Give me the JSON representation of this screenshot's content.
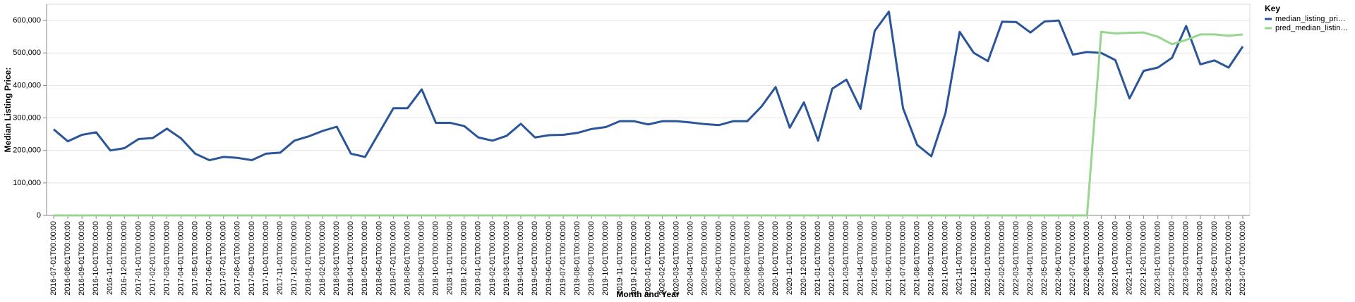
{
  "chart_data": {
    "type": "line",
    "x_label": "Month and Year",
    "y_label": "Median Listing Price:",
    "legend_title": "Key",
    "legend_position": "right",
    "grid": true,
    "ylim": [
      0,
      650000
    ],
    "yticks": [
      0,
      {
        "value": 100000,
        "label": "100,000"
      },
      {
        "value": 200000,
        "label": "200,000"
      },
      {
        "value": 300000,
        "label": "300,000"
      },
      {
        "value": 400000,
        "label": "400,000"
      },
      {
        "value": 500000,
        "label": "500,000"
      },
      {
        "value": 600000,
        "label": "600,000"
      }
    ],
    "categories": [
      "2016-07-01T00:00:00",
      "2016-08-01T00:00:00",
      "2016-09-01T00:00:00",
      "2016-10-01T00:00:00",
      "2016-11-01T00:00:00",
      "2016-12-01T00:00:00",
      "2017-01-01T00:00:00",
      "2017-02-01T00:00:00",
      "2017-03-01T00:00:00",
      "2017-04-01T00:00:00",
      "2017-05-01T00:00:00",
      "2017-06-01T00:00:00",
      "2017-07-01T00:00:00",
      "2017-08-01T00:00:00",
      "2017-09-01T00:00:00",
      "2017-10-01T00:00:00",
      "2017-11-01T00:00:00",
      "2017-12-01T00:00:00",
      "2018-01-01T00:00:00",
      "2018-02-01T00:00:00",
      "2018-03-01T00:00:00",
      "2018-04-01T00:00:00",
      "2018-05-01T00:00:00",
      "2018-06-01T00:00:00",
      "2018-07-01T00:00:00",
      "2018-08-01T00:00:00",
      "2018-09-01T00:00:00",
      "2018-10-01T00:00:00",
      "2018-11-01T00:00:00",
      "2018-12-01T00:00:00",
      "2019-01-01T00:00:00",
      "2019-02-01T00:00:00",
      "2019-03-01T00:00:00",
      "2019-04-01T00:00:00",
      "2019-05-01T00:00:00",
      "2019-06-01T00:00:00",
      "2019-07-01T00:00:00",
      "2019-08-01T00:00:00",
      "2019-09-01T00:00:00",
      "2019-10-01T00:00:00",
      "2019-11-01T00:00:00",
      "2019-12-01T00:00:00",
      "2020-01-01T00:00:00",
      "2020-02-01T00:00:00",
      "2020-03-01T00:00:00",
      "2020-04-01T00:00:00",
      "2020-05-01T00:00:00",
      "2020-06-01T00:00:00",
      "2020-07-01T00:00:00",
      "2020-08-01T00:00:00",
      "2020-09-01T00:00:00",
      "2020-10-01T00:00:00",
      "2020-11-01T00:00:00",
      "2020-12-01T00:00:00",
      "2021-01-01T00:00:00",
      "2021-02-01T00:00:00",
      "2021-03-01T00:00:00",
      "2021-04-01T00:00:00",
      "2021-05-01T00:00:00",
      "2021-06-01T00:00:00",
      "2021-07-01T00:00:00",
      "2021-08-01T00:00:00",
      "2021-09-01T00:00:00",
      "2021-10-01T00:00:00",
      "2021-11-01T00:00:00",
      "2021-12-01T00:00:00",
      "2022-01-01T00:00:00",
      "2022-02-01T00:00:00",
      "2022-03-01T00:00:00",
      "2022-04-01T00:00:00",
      "2022-05-01T00:00:00",
      "2022-06-01T00:00:00",
      "2022-07-01T00:00:00",
      "2022-08-01T00:00:00",
      "2022-09-01T00:00:00",
      "2022-10-01T00:00:00",
      "2022-11-01T00:00:00",
      "2022-12-01T00:00:00",
      "2023-01-01T00:00:00",
      "2023-02-01T00:00:00",
      "2023-03-01T00:00:00",
      "2023-04-01T00:00:00",
      "2023-05-01T00:00:00",
      "2023-06-01T00:00:00",
      "2023-07-01T00:00:00"
    ],
    "series": [
      {
        "name": "median_listing_pri…",
        "color": "#2a5599",
        "values": [
          265000,
          228000,
          248000,
          256000,
          200000,
          207000,
          235000,
          238000,
          267000,
          237000,
          190000,
          170000,
          180000,
          177000,
          170000,
          190000,
          193000,
          230000,
          243000,
          260000,
          273000,
          190000,
          180000,
          255000,
          330000,
          330000,
          388000,
          285000,
          285000,
          275000,
          240000,
          230000,
          245000,
          282000,
          240000,
          247000,
          248000,
          254000,
          266000,
          272000,
          290000,
          290000,
          280000,
          290000,
          290000,
          286000,
          281000,
          278000,
          290000,
          290000,
          335000,
          395000,
          270000,
          348000,
          230000,
          390000,
          418000,
          328000,
          568000,
          627000,
          330000,
          217000,
          182000,
          315000,
          565000,
          500000,
          475000,
          596000,
          595000,
          563000,
          597000,
          600000,
          495000,
          503000,
          500000,
          478000,
          360000,
          445000,
          455000,
          485000,
          583000,
          465000,
          477000,
          455000,
          520000
        ]
      },
      {
        "name": "pred_median_listin…",
        "color": "#98d68f",
        "values": [
          0,
          0,
          0,
          0,
          0,
          0,
          0,
          0,
          0,
          0,
          0,
          0,
          0,
          0,
          0,
          0,
          0,
          0,
          0,
          0,
          0,
          0,
          0,
          0,
          0,
          0,
          0,
          0,
          0,
          0,
          0,
          0,
          0,
          0,
          0,
          0,
          0,
          0,
          0,
          0,
          0,
          0,
          0,
          0,
          0,
          0,
          0,
          0,
          0,
          0,
          0,
          0,
          0,
          0,
          0,
          0,
          0,
          0,
          0,
          0,
          0,
          0,
          0,
          0,
          0,
          0,
          0,
          0,
          0,
          0,
          0,
          0,
          0,
          0,
          565000,
          560000,
          562000,
          563000,
          550000,
          527000,
          540000,
          557000,
          557000,
          553000,
          557000
        ]
      }
    ]
  }
}
